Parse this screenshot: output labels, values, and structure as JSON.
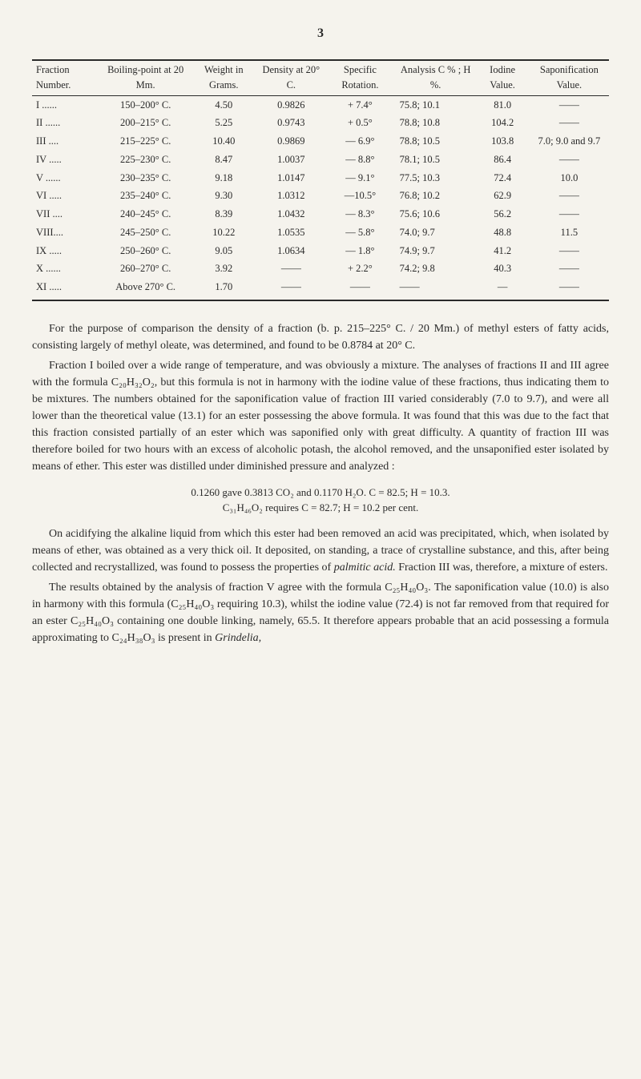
{
  "page_number": "3",
  "table": {
    "headers": {
      "fraction": "Fraction Number.",
      "boiling": "Boiling-point at 20 Mm.",
      "weight": "Weight in Grams.",
      "density": "Density at 20° C.",
      "specific": "Specific Rotation.",
      "analysis": "Analysis C % ; H %.",
      "iodine": "Iodine Value.",
      "saponi": "Saponi­fication Value."
    },
    "rows": [
      {
        "fraction": "I ......",
        "boiling": "150–200° C.",
        "weight": "4.50",
        "density": "0.9826",
        "specific": "+ 7.4°",
        "analysis": "75.8; 10.1",
        "iodine": "81.0",
        "saponi": "——"
      },
      {
        "fraction": "II ......",
        "boiling": "200–215° C.",
        "weight": "5.25",
        "density": "0.9743",
        "specific": "+ 0.5°",
        "analysis": "78.8; 10.8",
        "iodine": "104.2",
        "saponi": "——"
      },
      {
        "fraction": "III ....",
        "boiling": "215–225° C.",
        "weight": "10.40",
        "density": "0.9869",
        "specific": "— 6.9°",
        "analysis": "78.8; 10.5",
        "iodine": "103.8",
        "saponi": "7.0; 9.0 and 9.7"
      },
      {
        "fraction": "IV .....",
        "boiling": "225–230° C.",
        "weight": "8.47",
        "density": "1.0037",
        "specific": "— 8.8°",
        "analysis": "78.1; 10.5",
        "iodine": "86.4",
        "saponi": "——"
      },
      {
        "fraction": "V ......",
        "boiling": "230–235° C.",
        "weight": "9.18",
        "density": "1.0147",
        "specific": "— 9.1°",
        "analysis": "77.5; 10.3",
        "iodine": "72.4",
        "saponi": "10.0"
      },
      {
        "fraction": "VI .....",
        "boiling": "235–240° C.",
        "weight": "9.30",
        "density": "1.0312",
        "specific": "—10.5°",
        "analysis": "76.8; 10.2",
        "iodine": "62.9",
        "saponi": "——"
      },
      {
        "fraction": "VII ....",
        "boiling": "240–245° C.",
        "weight": "8.39",
        "density": "1.0432",
        "specific": "— 8.3°",
        "analysis": "75.6; 10.6",
        "iodine": "56.2",
        "saponi": "——"
      },
      {
        "fraction": "VIII....",
        "boiling": "245–250° C.",
        "weight": "10.22",
        "density": "1.0535",
        "specific": "— 5.8°",
        "analysis": "74.0;  9.7",
        "iodine": "48.8",
        "saponi": "11.5"
      },
      {
        "fraction": "IX .....",
        "boiling": "250–260° C.",
        "weight": "9.05",
        "density": "1.0634",
        "specific": "— 1.8°",
        "analysis": "74.9;  9.7",
        "iodine": "41.2",
        "saponi": "——"
      },
      {
        "fraction": "X ......",
        "boiling": "260–270° C.",
        "weight": "3.92",
        "density": "——",
        "specific": "+ 2.2°",
        "analysis": "74.2;  9.8",
        "iodine": "40.3",
        "saponi": "——"
      },
      {
        "fraction": "XI .....",
        "boiling": "Above 270° C.",
        "weight": "1.70",
        "density": "——",
        "specific": "——",
        "analysis": "——",
        "iodine": "—",
        "saponi": "——"
      }
    ]
  },
  "paragraphs": {
    "p1": "For the purpose of comparison the density of a fraction (b. p. 215–225° C. / 20 Mm.) of methyl esters of fatty acids, consisting largely of methyl oleate, was determined, and found to be 0.8784 at 20° C.",
    "p2": "Fraction I boiled over a wide range of temperature, and was obviously a mixture. The analyses of fractions II and III agree with the formula C₂₀H₃₂O₂, but this formula is not in harmony with the iodine value of these fractions, thus indicating them to be mixtures. The numbers obtained for the saponification value of fraction III varied considerably (7.0 to 9.7), and were all lower than the theoretical value (13.1) for an ester possess­ing the above formula. It was found that this was due to the fact that this fraction consisted partially of an ester which was saponified only with great difficulty. A quantity of fraction III was therefore boiled for two hours with an excess of alcoholic potash, the alcohol removed, and the unsaponified ester isolated by means of ether. This ester was distilled under diminished pressure and analyzed :",
    "formula1": "0.1260 gave 0.3813 CO₂ and 0.1170 H₂O.  C = 82.5;  H = 10.3.",
    "formula2": "C₃₁H₄₆O₂ requires C = 82.7;  H = 10.2 per cent.",
    "p3_pre": "On acidifying the alkaline liquid from which this ester had been re­moved an acid was precipitated, which, when isolated by means of ether, was obtained as a very thick oil. It deposited, on standing, a trace of crystalline substance, and this, after being collected and recrystallized, was found to possess the properties of ",
    "p3_em": "palmitic acid.",
    "p3_post": " Fraction III was, therefore, a mixture of esters.",
    "p4_pre": "The results obtained by the analysis of fraction V agree with the formula C₂₅H₄₀O₃. The saponification value (10.0) is also in harmony with this formula (C₂₅H₄₀O₃ requiring 10.3), whilst the iodine value (72.4) is not far removed from that required for an ester C₂₅H₄₀O₃ containing one double linking, namely, 65.5. It therefore appears probable that an acid possessing a formula approximating to C₂₄H₃₈O₃ is present in ",
    "p4_em": "Grindelia,"
  },
  "styling": {
    "background_color": "#f5f3ed",
    "text_color": "#2a2a2a",
    "font_family": "Georgia, 'Times New Roman', serif",
    "body_fontsize": 14,
    "table_fontsize": 12.5,
    "border_color": "#2a2a2a"
  }
}
